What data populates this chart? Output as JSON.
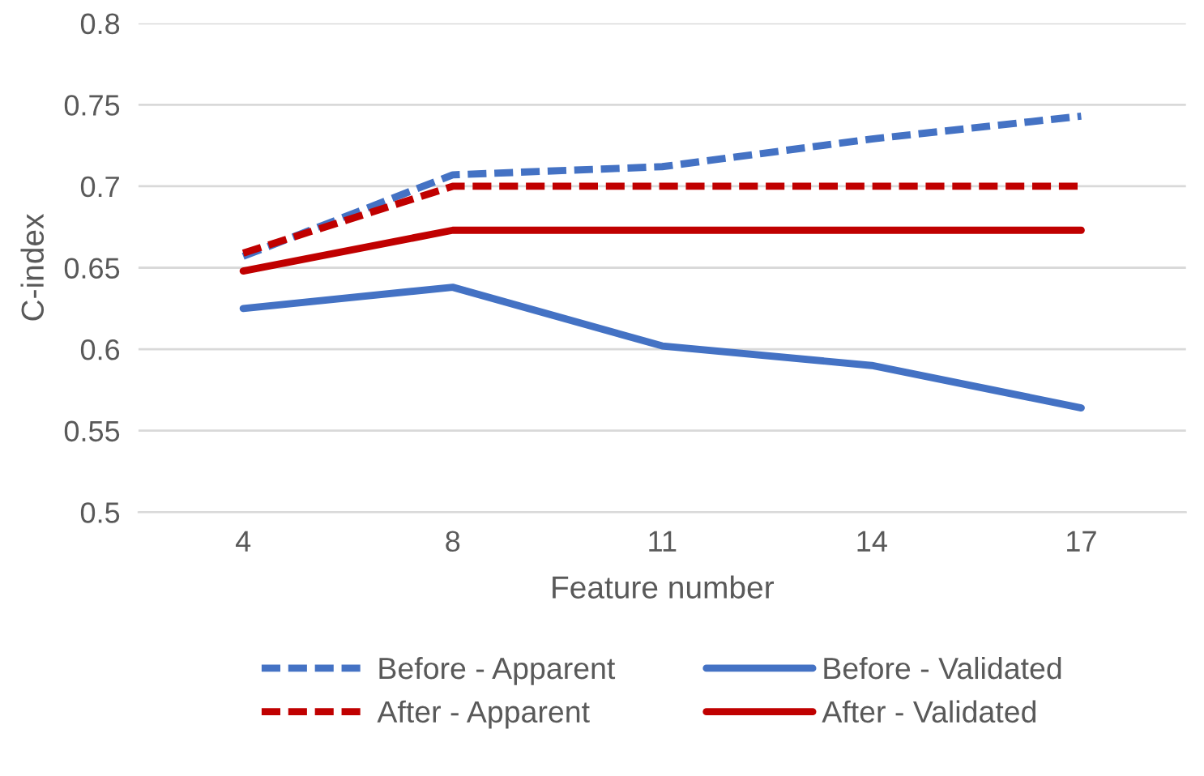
{
  "chart_data": {
    "type": "line",
    "xlabel": "Feature number",
    "ylabel": "C-index",
    "categories": [
      "4",
      "8",
      "11",
      "14",
      "17"
    ],
    "series": [
      {
        "name": "Before - Apparent",
        "color": "#4472c4",
        "line_style": "dashed",
        "values": [
          0.657,
          0.707,
          0.712,
          0.729,
          0.743
        ]
      },
      {
        "name": "Before - Validated",
        "color": "#4472c4",
        "line_style": "solid",
        "values": [
          0.625,
          0.638,
          0.602,
          0.59,
          0.564
        ]
      },
      {
        "name": "After - Apparent",
        "color": "#c00000",
        "line_style": "dashed",
        "values": [
          0.659,
          0.7,
          0.7,
          0.7,
          0.7
        ]
      },
      {
        "name": "After - Validated",
        "color": "#c00000",
        "line_style": "solid",
        "values": [
          0.648,
          0.673,
          0.673,
          0.673,
          0.673
        ]
      }
    ],
    "ylim": [
      0.5,
      0.8
    ],
    "yticks": [
      0.5,
      0.55,
      0.6,
      0.65,
      0.7,
      0.75,
      0.8
    ],
    "grid": "y",
    "legend": "bottom",
    "marker": "none"
  }
}
